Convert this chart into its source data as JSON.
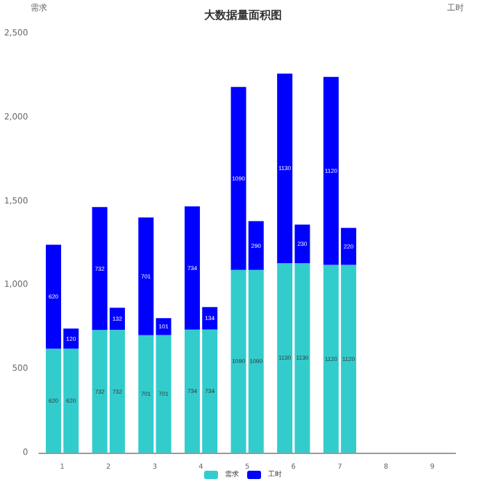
{
  "chart_data": {
    "type": "bar",
    "title": "大数据量面积图",
    "ylabel": "需求",
    "y2label": "工时",
    "categories": [
      "1",
      "2",
      "3",
      "4",
      "5",
      "6",
      "7",
      "8",
      "9"
    ],
    "series": [
      {
        "name": "需求",
        "color": "#33cccc",
        "values": [
          620,
          732,
          701,
          734,
          1090,
          1130,
          1120,
          null,
          null
        ]
      },
      {
        "name": "工时",
        "color": "#0000ff",
        "values": [
          620,
          732,
          701,
          734,
          1090,
          1130,
          1120,
          null,
          null
        ]
      },
      {
        "color": "#33cccc",
        "axis": "y2",
        "values": [
          620,
          732,
          701,
          734,
          1090,
          1130,
          1120,
          null,
          null
        ]
      },
      {
        "color": "#0000ff",
        "axis": "y2",
        "values": [
          120,
          132,
          101,
          134,
          290,
          230,
          220,
          null,
          null
        ]
      }
    ],
    "stacked": true,
    "data_labels": true,
    "ylim": [
      0,
      2500
    ],
    "yticks": [
      0,
      500,
      {
        "value": 1000,
        "label": "1,000"
      },
      {
        "value": 1500,
        "label": "1,500"
      },
      {
        "value": 2000,
        "label": "2,000"
      },
      {
        "value": 2500,
        "label": "2,500"
      }
    ],
    "grid": false,
    "legend": "bottom"
  }
}
